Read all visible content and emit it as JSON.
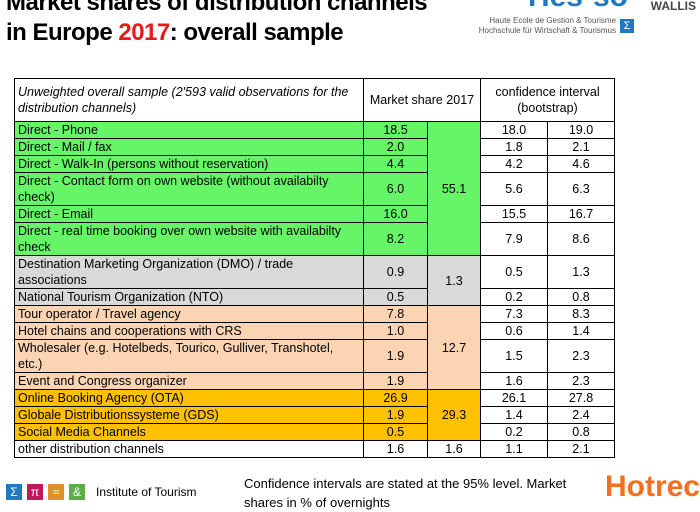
{
  "title": {
    "part1": "Market shares of distribution channels in Europe ",
    "year": "2017",
    "part2": ": overall sample"
  },
  "logo": {
    "name": "Hes·so",
    "region": "WALLIS",
    "line1": "Haute Ecole de Gestion & Tourisme",
    "line2": "Hochschule für Wirtschaft & Tourismus",
    "sigma": "Σ"
  },
  "table": {
    "header": {
      "desc": "Unweighted overall sample (2'593 valid observations for the distribution channels)",
      "share": "Market share 2017",
      "ci": "confidence interval (bootstrap)"
    },
    "rows": [
      {
        "label": "Direct - Phone",
        "share": "18.5",
        "lo": "18.0",
        "hi": "19.0"
      },
      {
        "label": "Direct - Mail / fax",
        "share": "2.0",
        "lo": "1.8",
        "hi": "2.1"
      },
      {
        "label": "Direct - Walk-In (persons without reservation)",
        "share": "4.4",
        "lo": "4.2",
        "hi": "4.6"
      },
      {
        "label": "Direct - Contact form on own website (without availabilty check)",
        "share": "6.0",
        "lo": "5.6",
        "hi": "6.3"
      },
      {
        "label": "Direct - Email",
        "share": "16.0",
        "lo": "15.5",
        "hi": "16.7"
      },
      {
        "label": "Direct - real time booking over own website with availabilty check",
        "share": "8.2",
        "lo": "7.9",
        "hi": "8.6"
      },
      {
        "label": "Destination Marketing Organization (DMO) / trade associations",
        "share": "0.9",
        "lo": "0.5",
        "hi": "1.3"
      },
      {
        "label": "National Tourism Organization (NTO)",
        "share": "0.5",
        "lo": "0.2",
        "hi": "0.8"
      },
      {
        "label": "Tour operator / Travel agency",
        "share": "7.8",
        "lo": "7.3",
        "hi": "8.3"
      },
      {
        "label": "Hotel chains and cooperations with CRS",
        "share": "1.0",
        "lo": "0.6",
        "hi": "1.4"
      },
      {
        "label": "Wholesaler (e.g. Hotelbeds, Tourico, Gulliver, Transhotel, etc.)",
        "share": "1.9",
        "lo": "1.5",
        "hi": "2.3"
      },
      {
        "label": "Event and Congress organizer",
        "share": "1.9",
        "lo": "1.6",
        "hi": "2.3"
      },
      {
        "label": "Online Booking Agency (OTA)",
        "share": "26.9",
        "lo": "26.1",
        "hi": "27.8"
      },
      {
        "label": "Globale Distributionssysteme (GDS)",
        "share": "1.9",
        "lo": "1.4",
        "hi": "2.4"
      },
      {
        "label": "Social Media Channels",
        "share": "0.5",
        "lo": "0.2",
        "hi": "0.8"
      },
      {
        "label": "other distribution channels",
        "share": "1.6",
        "lo": "1.1",
        "hi": "2.1"
      }
    ],
    "groups": {
      "direct": "55.1",
      "dmo": "1.3",
      "intermediary": "12.7",
      "online": "29.3",
      "other": "1.6"
    }
  },
  "colors": {
    "green": "#66f566",
    "gray": "#d9d9d9",
    "peach": "#fbd4b4",
    "orange": "#ffc000"
  },
  "footer": {
    "note": "Confidence intervals are stated at the 95% level. Market shares in % of overnights",
    "institute": "Institute of Tourism",
    "icons": [
      "Σ",
      "π",
      "≈",
      "&"
    ],
    "hotrec": "Hotrec"
  }
}
